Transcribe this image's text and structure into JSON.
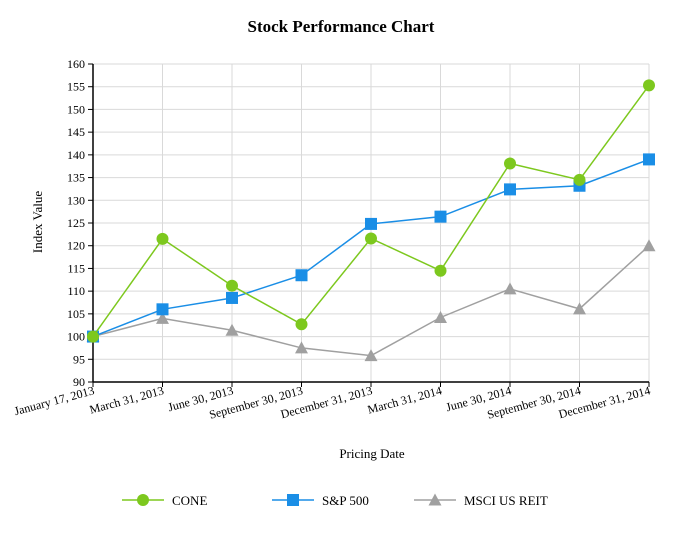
{
  "chart_data": {
    "type": "line",
    "title": "Stock Performance Chart",
    "xlabel": "Pricing Date",
    "ylabel": "Index Value",
    "ylim": [
      90,
      160
    ],
    "yticks": [
      90,
      95,
      100,
      105,
      110,
      115,
      120,
      125,
      130,
      135,
      140,
      145,
      150,
      155,
      160
    ],
    "grid": "horizontal and vertical",
    "legend_position": "bottom",
    "categories": [
      "January 17, 2013",
      "March 31, 2013",
      "June 30, 2013",
      "September 30, 2013",
      "December 31, 2013",
      "March 31, 2014",
      "June 30, 2014",
      "September 30, 2014",
      "December 31, 2014"
    ],
    "series": [
      {
        "name": "CONE",
        "color": "#7dc81e",
        "marker": "circle",
        "values": [
          100,
          121.5,
          111.2,
          102.7,
          121.6,
          114.5,
          138.1,
          134.5,
          155.3
        ]
      },
      {
        "name": "S&P 500",
        "color": "#1a8ee6",
        "marker": "square",
        "values": [
          100,
          106.0,
          108.5,
          113.5,
          124.8,
          126.4,
          132.4,
          133.2,
          139.0
        ]
      },
      {
        "name": "MSCI US REIT",
        "color": "#a0a0a0",
        "marker": "triangle",
        "values": [
          100,
          104.0,
          101.4,
          97.5,
          95.8,
          104.2,
          110.5,
          106.1,
          120.0
        ]
      }
    ]
  }
}
